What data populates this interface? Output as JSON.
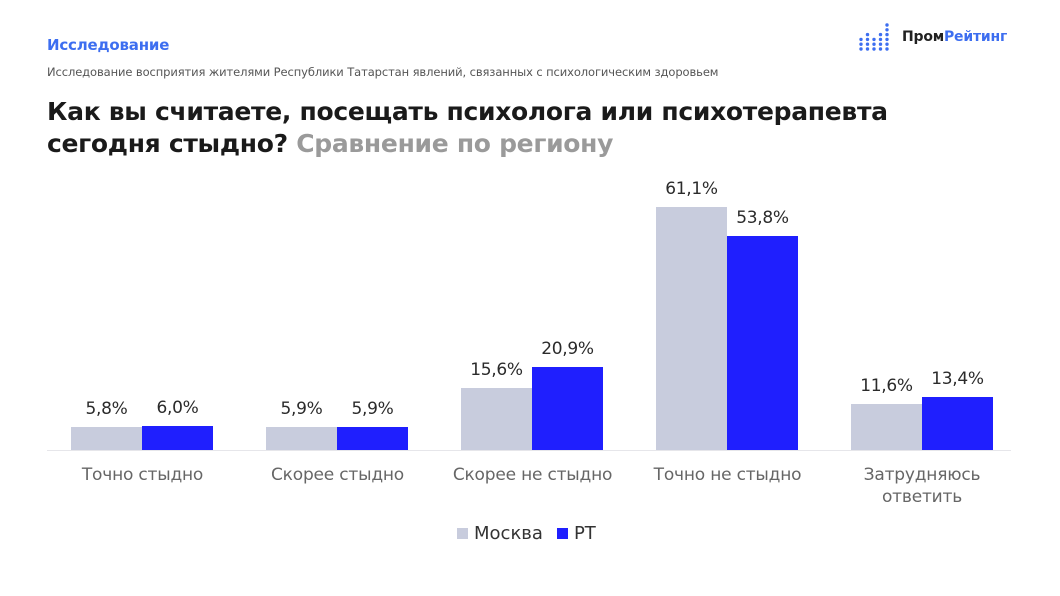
{
  "header": {
    "kicker": "Исследование",
    "subtitle": "Исследование восприятия жителями Республики Татарстан явлений, связанных с психологическим здоровьем",
    "title_main": "Как вы считаете, посещать психолога или психотерапевта сегодня стыдно?",
    "title_suffix": "Сравнение по региону"
  },
  "logo": {
    "name_part1": "Пром",
    "name_part2": "Рейтинг",
    "icon": "dot-bars-icon",
    "accent_color": "#3d6ef0"
  },
  "legend": [
    {
      "label": "Москва",
      "color": "#c8ccdd"
    },
    {
      "label": "РТ",
      "color": "#1f1ffe"
    }
  ],
  "chart_data": {
    "type": "bar",
    "title": "Как вы считаете, посещать психолога или психотерапевта сегодня стыдно? Сравнение по региону",
    "xlabel": "",
    "ylabel": "",
    "ylim": [
      0,
      70
    ],
    "grid": false,
    "legend_position": "bottom",
    "categories": [
      "Точно стыдно",
      "Скорее стыдно",
      "Скорее не стыдно",
      "Точно не стыдно",
      "Затрудняюсь ответить"
    ],
    "series": [
      {
        "name": "Москва",
        "color": "#c8ccdd",
        "values": [
          5.8,
          5.9,
          15.6,
          61.1,
          11.6
        ],
        "labels": [
          "5,8%",
          "5,9%",
          "15,6%",
          "61,1%",
          "11,6%"
        ]
      },
      {
        "name": "РТ",
        "color": "#1f1ffe",
        "values": [
          6.0,
          5.9,
          20.9,
          53.8,
          13.4
        ],
        "labels": [
          "6,0%",
          "5,9%",
          "20,9%",
          "53,8%",
          "13,4%"
        ]
      }
    ]
  }
}
